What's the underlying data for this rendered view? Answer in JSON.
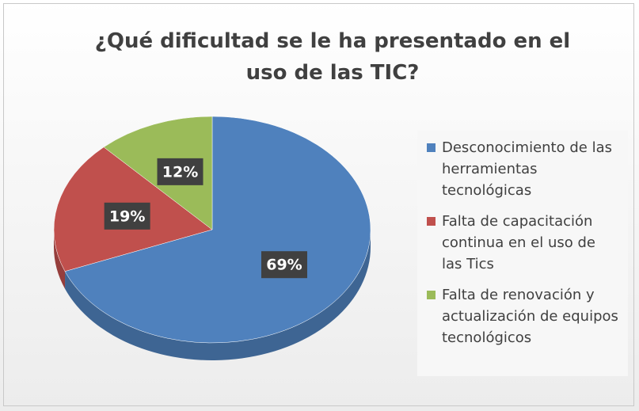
{
  "chart_data": {
    "type": "pie3d",
    "title": "¿Qué dificultad se le ha presentado en el uso de las TIC?",
    "categories": [
      "Desconocimiento de las herramientas tecnológicas",
      "Falta de capacitación continua en el uso de las Tics",
      "Falta de renovación y actualización de equipos tecnológicos"
    ],
    "values": [
      69,
      19,
      12
    ],
    "value_labels": [
      "69%",
      "19%",
      "12%"
    ],
    "colors": [
      "#4f81bd",
      "#c0504d",
      "#9bbb59"
    ],
    "legend": "right"
  }
}
